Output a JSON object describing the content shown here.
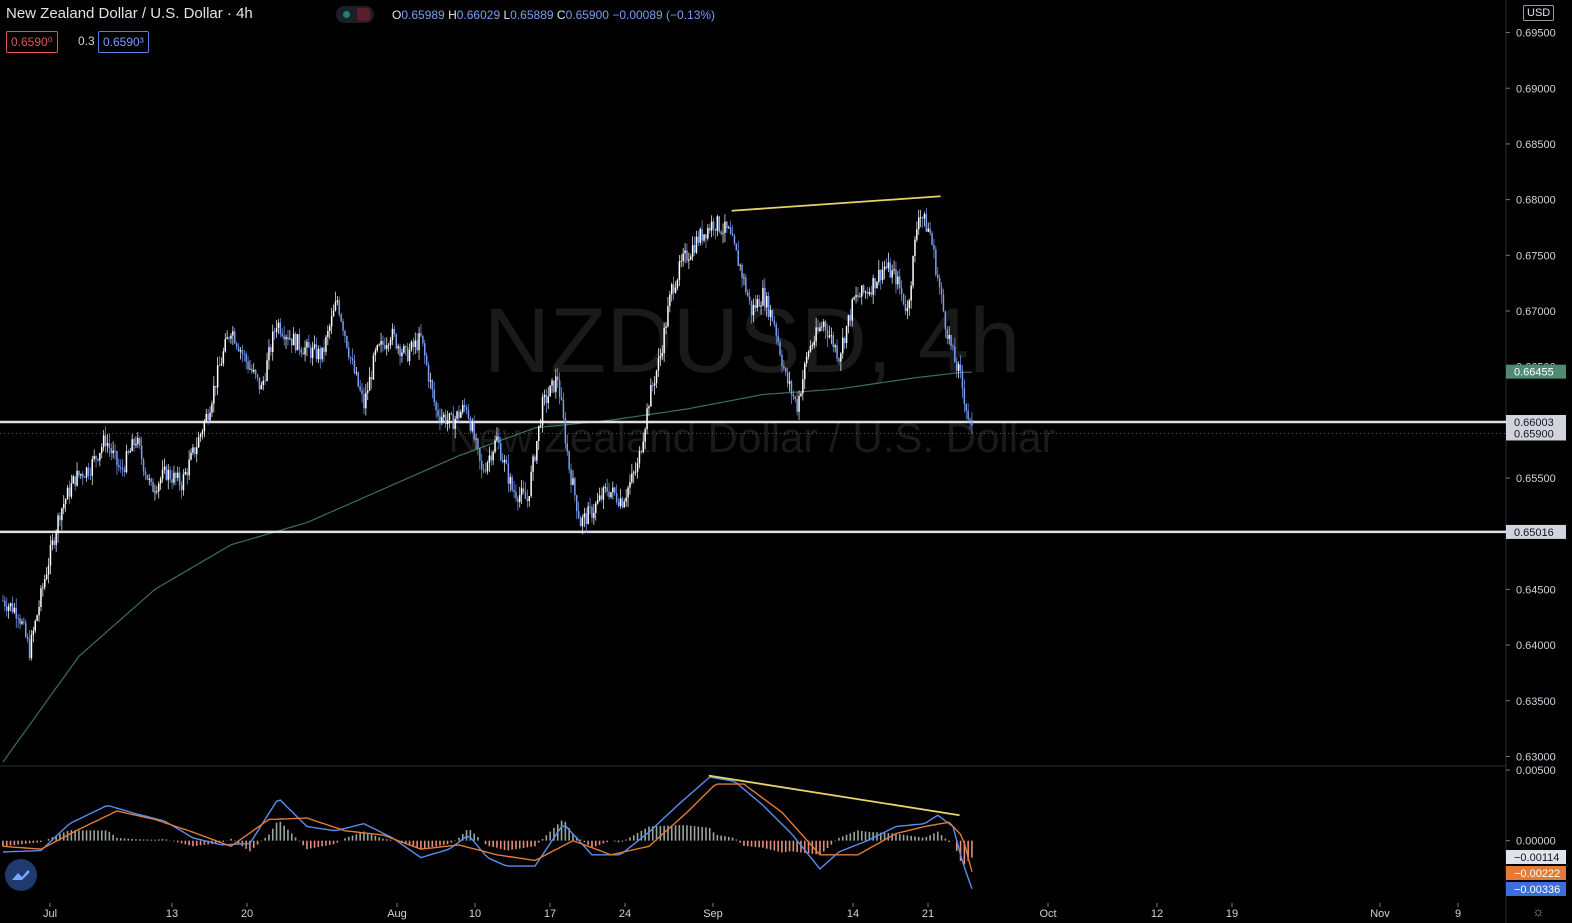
{
  "header": {
    "title": "New Zealand Dollar / U.S. Dollar · 4h",
    "ohlc": [
      {
        "k": "O",
        "v": "0.65989"
      },
      {
        "k": "H",
        "v": "0.66029"
      },
      {
        "k": "L",
        "v": "0.65889"
      },
      {
        "k": "C",
        "v": "0.65900"
      }
    ],
    "change": "−0.00089 (−0.13%)",
    "bid": "0.6590⁰",
    "spread": "0.3",
    "ask": "0.6590³",
    "currency": "USD"
  },
  "watermark": {
    "symbol": "NZDUSD, 4h",
    "name": "New Zealand Dollar / U.S. Dollar"
  },
  "colors": {
    "background": "#000000",
    "candle": "#ffffff",
    "candle_down": "#7a9ef5",
    "ma": "#3c6e5f",
    "trendline": "#e8d36a",
    "level_line": "#e0e0e0",
    "macd": "#5b8def",
    "signal": "#e07b39",
    "hist_pos": "#9aa6a0",
    "hist_neg": "#e0907a",
    "ma_label": "#4f8a73",
    "signal_label": "#e07b39",
    "macd_label": "#3b6fd9"
  },
  "icons": {
    "logo": "tradingview-cloud-icon",
    "settings": "gear-icon"
  },
  "chart_data": {
    "type": "candlestick",
    "timeframe": "4h",
    "ylim": [
      0.6295,
      0.6955
    ],
    "y_ticks": [
      "0.69500",
      "0.69000",
      "0.68500",
      "0.68000",
      "0.67500",
      "0.67000",
      "0.66500",
      "0.66000",
      "0.65500",
      "0.65000",
      "0.64500",
      "0.64000",
      "0.63500",
      "0.63000"
    ],
    "x_ticks": [
      "Jul",
      "13",
      "20",
      "Aug",
      "10",
      "17",
      "24",
      "Sep",
      "14",
      "21",
      "Oct",
      "12",
      "19",
      "Nov",
      "9"
    ],
    "close_anchors": [
      [
        0,
        0.644
      ],
      [
        8,
        0.643
      ],
      [
        14,
        0.6395
      ],
      [
        22,
        0.646
      ],
      [
        30,
        0.652
      ],
      [
        38,
        0.655
      ],
      [
        46,
        0.656
      ],
      [
        54,
        0.6585
      ],
      [
        62,
        0.6555
      ],
      [
        70,
        0.6585
      ],
      [
        78,
        0.654
      ],
      [
        86,
        0.6555
      ],
      [
        94,
        0.6545
      ],
      [
        102,
        0.658
      ],
      [
        108,
        0.661
      ],
      [
        114,
        0.665
      ],
      [
        120,
        0.6685
      ],
      [
        128,
        0.6655
      ],
      [
        136,
        0.663
      ],
      [
        144,
        0.669
      ],
      [
        152,
        0.6675
      ],
      [
        160,
        0.6665
      ],
      [
        168,
        0.666
      ],
      [
        176,
        0.671
      ],
      [
        184,
        0.665
      ],
      [
        190,
        0.6615
      ],
      [
        196,
        0.666
      ],
      [
        204,
        0.668
      ],
      [
        212,
        0.666
      ],
      [
        220,
        0.6675
      ],
      [
        228,
        0.661
      ],
      [
        236,
        0.66
      ],
      [
        244,
        0.6615
      ],
      [
        252,
        0.6555
      ],
      [
        260,
        0.6585
      ],
      [
        268,
        0.654
      ],
      [
        276,
        0.653
      ],
      [
        284,
        0.6615
      ],
      [
        292,
        0.664
      ],
      [
        298,
        0.656
      ],
      [
        304,
        0.651
      ],
      [
        310,
        0.652
      ],
      [
        318,
        0.654
      ],
      [
        326,
        0.653
      ],
      [
        334,
        0.656
      ],
      [
        340,
        0.662
      ],
      [
        346,
        0.666
      ],
      [
        352,
        0.672
      ],
      [
        358,
        0.6745
      ],
      [
        366,
        0.6765
      ],
      [
        374,
        0.678
      ],
      [
        382,
        0.677
      ],
      [
        388,
        0.674
      ],
      [
        394,
        0.67
      ],
      [
        400,
        0.6715
      ],
      [
        406,
        0.669
      ],
      [
        412,
        0.664
      ],
      [
        418,
        0.6615
      ],
      [
        424,
        0.6665
      ],
      [
        432,
        0.669
      ],
      [
        440,
        0.666
      ],
      [
        448,
        0.671
      ],
      [
        456,
        0.672
      ],
      [
        464,
        0.674
      ],
      [
        470,
        0.673
      ],
      [
        476,
        0.67
      ],
      [
        482,
        0.679
      ],
      [
        488,
        0.677
      ],
      [
        492,
        0.673
      ],
      [
        496,
        0.669
      ],
      [
        500,
        0.666
      ],
      [
        504,
        0.664
      ],
      [
        508,
        0.6605
      ],
      [
        510,
        0.659
      ]
    ],
    "ma": {
      "period": 200,
      "points": [
        [
          0,
          0.6295
        ],
        [
          40,
          0.639
        ],
        [
          80,
          0.645
        ],
        [
          120,
          0.649
        ],
        [
          160,
          0.651
        ],
        [
          200,
          0.654
        ],
        [
          240,
          0.657
        ],
        [
          280,
          0.6595
        ],
        [
          320,
          0.6602
        ],
        [
          360,
          0.6612
        ],
        [
          400,
          0.6625
        ],
        [
          440,
          0.663
        ],
        [
          480,
          0.664
        ],
        [
          505,
          0.6645
        ],
        [
          510,
          0.6645
        ]
      ]
    },
    "horizontal_levels": [
      0.66003,
      0.65016
    ],
    "trendline": [
      [
        384,
        0.679
      ],
      [
        494,
        0.6803
      ]
    ],
    "price_labels": [
      {
        "value": 0.66455,
        "text": "0.66455",
        "kind": "ma"
      },
      {
        "value": 0.66003,
        "text": "0.66003",
        "kind": "level"
      },
      {
        "value": 0.659,
        "text": "0.65900",
        "kind": "last"
      },
      {
        "value": 0.65016,
        "text": "0.65016",
        "kind": "level"
      }
    ],
    "macd": {
      "ylim": [
        -0.0042,
        0.005
      ],
      "y_ticks": [
        "0.00500",
        "0.00000"
      ],
      "line": [
        [
          0,
          -0.0008
        ],
        [
          20,
          -0.0007
        ],
        [
          35,
          0.0012
        ],
        [
          55,
          0.0025
        ],
        [
          70,
          0.0019
        ],
        [
          85,
          0.0014
        ],
        [
          100,
          0.0002
        ],
        [
          115,
          -0.0003
        ],
        [
          130,
          -0.0002
        ],
        [
          145,
          0.003
        ],
        [
          160,
          0.001
        ],
        [
          175,
          0.0007
        ],
        [
          190,
          0.0012
        ],
        [
          205,
          0.0002
        ],
        [
          220,
          -0.0012
        ],
        [
          235,
          -0.0006
        ],
        [
          245,
          0.0004
        ],
        [
          255,
          -0.0012
        ],
        [
          265,
          -0.0018
        ],
        [
          280,
          -0.0018
        ],
        [
          295,
          0.0012
        ],
        [
          310,
          -0.001
        ],
        [
          325,
          -0.001
        ],
        [
          340,
          0.0006
        ],
        [
          355,
          0.0025
        ],
        [
          372,
          0.0045
        ],
        [
          385,
          0.0042
        ],
        [
          400,
          0.0025
        ],
        [
          415,
          0.0005
        ],
        [
          430,
          -0.002
        ],
        [
          440,
          -0.0008
        ],
        [
          455,
          0.0
        ],
        [
          470,
          0.001
        ],
        [
          485,
          0.0012
        ],
        [
          492,
          0.0018
        ],
        [
          500,
          0.001
        ],
        [
          505,
          -0.0015
        ],
        [
          510,
          -0.0034
        ]
      ],
      "signal": [
        [
          0,
          -0.0004
        ],
        [
          20,
          -0.0006
        ],
        [
          40,
          0.0008
        ],
        [
          60,
          0.0021
        ],
        [
          80,
          0.0015
        ],
        [
          100,
          0.0006
        ],
        [
          120,
          -0.0004
        ],
        [
          140,
          0.0015
        ],
        [
          160,
          0.0016
        ],
        [
          180,
          0.0007
        ],
        [
          200,
          0.0004
        ],
        [
          220,
          -0.0006
        ],
        [
          240,
          -0.0003
        ],
        [
          260,
          -0.001
        ],
        [
          280,
          -0.0014
        ],
        [
          300,
          0.0
        ],
        [
          320,
          -0.001
        ],
        [
          340,
          -0.0004
        ],
        [
          360,
          0.002
        ],
        [
          375,
          0.004
        ],
        [
          390,
          0.004
        ],
        [
          410,
          0.002
        ],
        [
          430,
          -0.001
        ],
        [
          450,
          -0.001
        ],
        [
          470,
          0.0005
        ],
        [
          485,
          0.001
        ],
        [
          498,
          0.0013
        ],
        [
          505,
          0.0003
        ],
        [
          510,
          -0.0022
        ]
      ],
      "trendline": [
        [
          372,
          0.0046
        ],
        [
          504,
          0.0018
        ]
      ],
      "labels": [
        {
          "value": -0.00114,
          "text": "−0.00114",
          "kind": "hist"
        },
        {
          "value": -0.00222,
          "text": "−0.00222",
          "kind": "signal"
        },
        {
          "value": -0.00336,
          "text": "−0.00336",
          "kind": "macd"
        }
      ]
    }
  }
}
